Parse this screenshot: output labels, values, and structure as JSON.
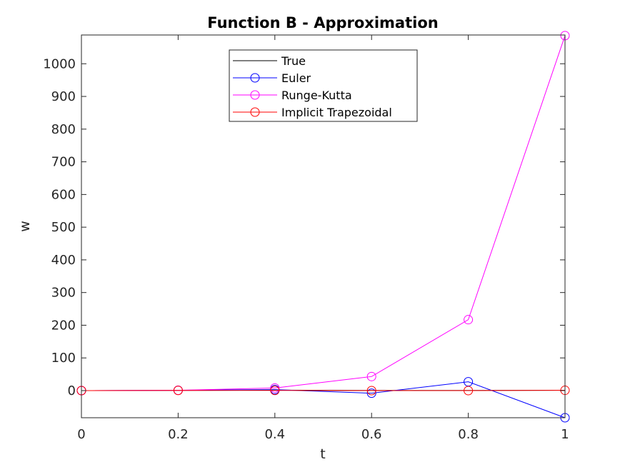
{
  "chart_data": {
    "type": "line",
    "title": "Function B - Approximation",
    "xlabel": "t",
    "ylabel": "w",
    "xlim": [
      0,
      1
    ],
    "ylim": [
      -83,
      1088
    ],
    "xticks": [
      0,
      0.2,
      0.4,
      0.6,
      0.8,
      1
    ],
    "xtick_labels": [
      "0",
      "0.2",
      "0.4",
      "0.6",
      "0.8",
      "1"
    ],
    "yticks": [
      0,
      100,
      200,
      300,
      400,
      500,
      600,
      700,
      800,
      900,
      1000
    ],
    "ytick_labels": [
      "0",
      "100",
      "200",
      "300",
      "400",
      "500",
      "600",
      "700",
      "800",
      "900",
      "1000"
    ],
    "grid": false,
    "legend_position": "top-center",
    "x": [
      0,
      0.2,
      0.4,
      0.6,
      0.8,
      1
    ],
    "series": [
      {
        "name": "True",
        "color": "#000000",
        "marker": "none",
        "values": [
          0,
          0.5,
          1.5,
          0.5,
          0.5,
          1
        ]
      },
      {
        "name": "Euler",
        "color": "#0000ff",
        "marker": "circle",
        "values": [
          0,
          1,
          3,
          -8,
          27,
          -83
        ]
      },
      {
        "name": "Runge-Kutta",
        "color": "#ff00ff",
        "marker": "circle",
        "values": [
          0,
          1,
          8,
          43,
          217,
          1086
        ]
      },
      {
        "name": "Implicit Trapezoidal",
        "color": "#ff0000",
        "marker": "circle",
        "values": [
          0,
          0.5,
          0.5,
          0,
          0,
          1
        ]
      }
    ]
  }
}
